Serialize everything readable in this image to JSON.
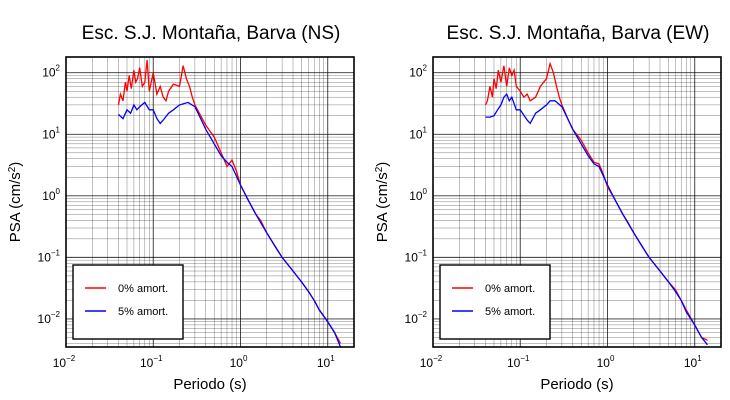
{
  "colors": {
    "red": "#ff0000",
    "blue": "#0000ff",
    "grid": "#000000"
  },
  "chart_data": [
    {
      "type": "line",
      "title": "Esc. S.J. Montaña, Barva (NS)",
      "xlabel": "Periodo (s)",
      "ylabel_main": "PSA (cm/s",
      "ylabel_sup": "2",
      "ylabel_end": ")",
      "xscale": "log",
      "yscale": "log",
      "xlim": [
        0.01,
        20
      ],
      "ylim": [
        0.0035,
        180
      ],
      "grid": true,
      "x_ticks": [
        {
          "base": "10",
          "exp": "−2",
          "value": 0.01
        },
        {
          "base": "10",
          "exp": "−1",
          "value": 0.1
        },
        {
          "base": "10",
          "exp": "0",
          "value": 1
        },
        {
          "base": "10",
          "exp": "1",
          "value": 10
        }
      ],
      "y_ticks": [
        {
          "base": "10",
          "exp": "−2",
          "value": 0.01
        },
        {
          "base": "10",
          "exp": "−1",
          "value": 0.1
        },
        {
          "base": "10",
          "exp": "0",
          "value": 1
        },
        {
          "base": "10",
          "exp": "1",
          "value": 10
        },
        {
          "base": "10",
          "exp": "2",
          "value": 100
        }
      ],
      "legend_position": "bottom-left",
      "series": [
        {
          "name": "0% amort.",
          "color": "#ff0000",
          "points": [
            [
              0.04,
              30
            ],
            [
              0.042,
              45
            ],
            [
              0.045,
              35
            ],
            [
              0.048,
              70
            ],
            [
              0.05,
              50
            ],
            [
              0.053,
              90
            ],
            [
              0.056,
              55
            ],
            [
              0.06,
              110
            ],
            [
              0.063,
              70
            ],
            [
              0.066,
              80
            ],
            [
              0.07,
              120
            ],
            [
              0.075,
              60
            ],
            [
              0.08,
              70
            ],
            [
              0.085,
              160
            ],
            [
              0.09,
              50
            ],
            [
              0.1,
              100
            ],
            [
              0.11,
              45
            ],
            [
              0.12,
              60
            ],
            [
              0.13,
              40
            ],
            [
              0.14,
              35
            ],
            [
              0.15,
              50
            ],
            [
              0.17,
              65
            ],
            [
              0.2,
              60
            ],
            [
              0.22,
              130
            ],
            [
              0.24,
              80
            ],
            [
              0.26,
              60
            ],
            [
              0.28,
              40
            ],
            [
              0.3,
              30
            ],
            [
              0.35,
              20
            ],
            [
              0.4,
              14
            ],
            [
              0.5,
              9
            ],
            [
              0.6,
              5
            ],
            [
              0.7,
              3
            ],
            [
              0.8,
              3.8
            ],
            [
              0.9,
              2.5
            ],
            [
              1.0,
              1.5
            ],
            [
              1.2,
              0.9
            ],
            [
              1.5,
              0.5
            ],
            [
              1.7,
              0.4
            ],
            [
              2.0,
              0.25
            ],
            [
              2.5,
              0.15
            ],
            [
              3.0,
              0.1
            ],
            [
              4.0,
              0.06
            ],
            [
              5.0,
              0.04
            ],
            [
              6.0,
              0.028
            ],
            [
              7.0,
              0.02
            ],
            [
              8.0,
              0.014
            ],
            [
              10.0,
              0.009
            ],
            [
              12.0,
              0.006
            ],
            [
              14.0,
              0.004
            ]
          ]
        },
        {
          "name": "5% amort.",
          "color": "#0000ff",
          "points": [
            [
              0.04,
              21
            ],
            [
              0.045,
              18
            ],
            [
              0.05,
              25
            ],
            [
              0.055,
              22
            ],
            [
              0.06,
              30
            ],
            [
              0.065,
              25
            ],
            [
              0.07,
              28
            ],
            [
              0.08,
              33
            ],
            [
              0.09,
              25
            ],
            [
              0.1,
              25
            ],
            [
              0.11,
              18
            ],
            [
              0.12,
              15
            ],
            [
              0.13,
              17
            ],
            [
              0.15,
              22
            ],
            [
              0.17,
              25
            ],
            [
              0.2,
              30
            ],
            [
              0.25,
              33
            ],
            [
              0.3,
              28
            ],
            [
              0.35,
              18
            ],
            [
              0.4,
              12
            ],
            [
              0.5,
              7
            ],
            [
              0.6,
              4.5
            ],
            [
              0.7,
              3.5
            ],
            [
              0.8,
              3
            ],
            [
              1.0,
              1.5
            ],
            [
              1.2,
              0.9
            ],
            [
              1.5,
              0.5
            ],
            [
              2.0,
              0.25
            ],
            [
              2.5,
              0.15
            ],
            [
              3.0,
              0.1
            ],
            [
              4.0,
              0.06
            ],
            [
              5.0,
              0.04
            ],
            [
              6.0,
              0.028
            ],
            [
              7.0,
              0.02
            ],
            [
              8.0,
              0.014
            ],
            [
              10.0,
              0.009
            ],
            [
              12.0,
              0.006
            ],
            [
              14.0,
              0.0035
            ]
          ]
        }
      ]
    },
    {
      "type": "line",
      "title": "Esc. S.J. Montaña, Barva (EW)",
      "xlabel": "Periodo (s)",
      "ylabel_main": "PSA (cm/s",
      "ylabel_sup": "2",
      "ylabel_end": ")",
      "xscale": "log",
      "yscale": "log",
      "xlim": [
        0.01,
        20
      ],
      "ylim": [
        0.0035,
        180
      ],
      "grid": true,
      "x_ticks": [
        {
          "base": "10",
          "exp": "−2",
          "value": 0.01
        },
        {
          "base": "10",
          "exp": "−1",
          "value": 0.1
        },
        {
          "base": "10",
          "exp": "0",
          "value": 1
        },
        {
          "base": "10",
          "exp": "1",
          "value": 10
        }
      ],
      "y_ticks": [
        {
          "base": "10",
          "exp": "−2",
          "value": 0.01
        },
        {
          "base": "10",
          "exp": "−1",
          "value": 0.1
        },
        {
          "base": "10",
          "exp": "0",
          "value": 1
        },
        {
          "base": "10",
          "exp": "1",
          "value": 10
        },
        {
          "base": "10",
          "exp": "2",
          "value": 100
        }
      ],
      "legend_position": "bottom-left",
      "series": [
        {
          "name": "0% amort.",
          "color": "#ff0000",
          "points": [
            [
              0.04,
              30
            ],
            [
              0.042,
              35
            ],
            [
              0.045,
              60
            ],
            [
              0.048,
              40
            ],
            [
              0.05,
              80
            ],
            [
              0.053,
              55
            ],
            [
              0.056,
              110
            ],
            [
              0.06,
              70
            ],
            [
              0.065,
              130
            ],
            [
              0.07,
              60
            ],
            [
              0.075,
              120
            ],
            [
              0.08,
              90
            ],
            [
              0.085,
              110
            ],
            [
              0.09,
              60
            ],
            [
              0.1,
              50
            ],
            [
              0.11,
              40
            ],
            [
              0.12,
              45
            ],
            [
              0.13,
              35
            ],
            [
              0.15,
              40
            ],
            [
              0.17,
              60
            ],
            [
              0.2,
              80
            ],
            [
              0.22,
              140
            ],
            [
              0.24,
              100
            ],
            [
              0.26,
              60
            ],
            [
              0.28,
              40
            ],
            [
              0.3,
              30
            ],
            [
              0.35,
              18
            ],
            [
              0.4,
              12
            ],
            [
              0.5,
              8
            ],
            [
              0.6,
              5
            ],
            [
              0.7,
              3.5
            ],
            [
              0.8,
              3.3
            ],
            [
              0.9,
              2.2
            ],
            [
              1.0,
              1.4
            ],
            [
              1.2,
              0.9
            ],
            [
              1.5,
              0.5
            ],
            [
              1.7,
              0.38
            ],
            [
              2.0,
              0.25
            ],
            [
              2.5,
              0.15
            ],
            [
              3.0,
              0.1
            ],
            [
              4.0,
              0.06
            ],
            [
              5.0,
              0.04
            ],
            [
              6.0,
              0.03
            ],
            [
              7.0,
              0.02
            ],
            [
              8.0,
              0.014
            ],
            [
              10.0,
              0.008
            ],
            [
              12.0,
              0.005
            ],
            [
              14.0,
              0.0045
            ]
          ]
        },
        {
          "name": "5% amort.",
          "color": "#0000ff",
          "points": [
            [
              0.04,
              19
            ],
            [
              0.045,
              19
            ],
            [
              0.05,
              20
            ],
            [
              0.055,
              25
            ],
            [
              0.06,
              30
            ],
            [
              0.065,
              40
            ],
            [
              0.07,
              45
            ],
            [
              0.075,
              35
            ],
            [
              0.08,
              40
            ],
            [
              0.09,
              25
            ],
            [
              0.1,
              25
            ],
            [
              0.12,
              17
            ],
            [
              0.13,
              15
            ],
            [
              0.15,
              22
            ],
            [
              0.17,
              25
            ],
            [
              0.2,
              30
            ],
            [
              0.22,
              35
            ],
            [
              0.25,
              35
            ],
            [
              0.3,
              28
            ],
            [
              0.35,
              18
            ],
            [
              0.4,
              12
            ],
            [
              0.5,
              7
            ],
            [
              0.6,
              4.5
            ],
            [
              0.7,
              3.3
            ],
            [
              0.8,
              3
            ],
            [
              1.0,
              1.5
            ],
            [
              1.2,
              0.9
            ],
            [
              1.5,
              0.5
            ],
            [
              2.0,
              0.25
            ],
            [
              2.5,
              0.15
            ],
            [
              3.0,
              0.1
            ],
            [
              4.0,
              0.06
            ],
            [
              5.0,
              0.04
            ],
            [
              6.0,
              0.028
            ],
            [
              7.0,
              0.02
            ],
            [
              8.0,
              0.013
            ],
            [
              10.0,
              0.008
            ],
            [
              12.0,
              0.005
            ],
            [
              14.0,
              0.0038
            ]
          ]
        }
      ]
    }
  ]
}
